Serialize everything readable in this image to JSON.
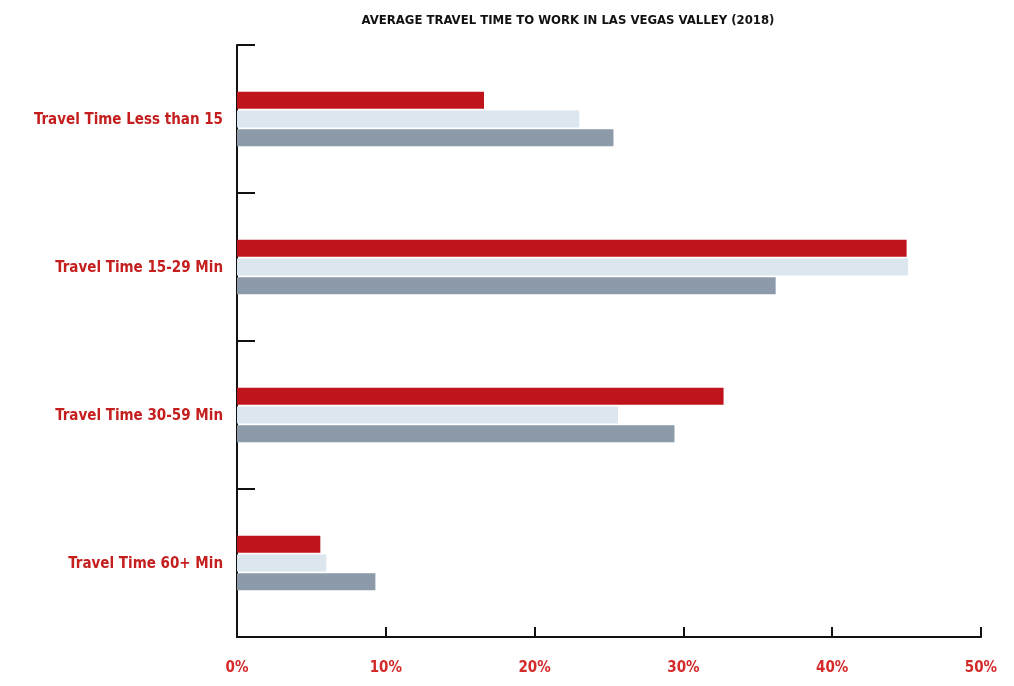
{
  "chart_data": {
    "type": "bar",
    "orientation": "horizontal",
    "title": "AVERAGE TRAVEL TIME TO WORK IN LAS VEGAS VALLEY (2018)",
    "categories": [
      "Travel Time Less than 15",
      "Travel Time 15-29 Min",
      "Travel Time 30-59 Min",
      "Travel Time 60+ Min"
    ],
    "series": [
      {
        "color": "#c0141c",
        "values": [
          16.6,
          45.0,
          32.7,
          5.6
        ]
      },
      {
        "color": "#dce6ee",
        "values": [
          23.0,
          45.1,
          25.6,
          6.0
        ]
      },
      {
        "color": "#8c9aaa",
        "values": [
          25.3,
          36.2,
          29.4,
          9.3
        ]
      }
    ],
    "xlim": [
      0,
      50
    ],
    "xticks": [
      {
        "value": 0,
        "label": "0%"
      },
      {
        "value": 10,
        "label": "10%"
      },
      {
        "value": 20,
        "label": "20%"
      },
      {
        "value": 30,
        "label": "30%"
      },
      {
        "value": 40,
        "label": "40%"
      },
      {
        "value": 50,
        "label": "50%"
      }
    ]
  }
}
